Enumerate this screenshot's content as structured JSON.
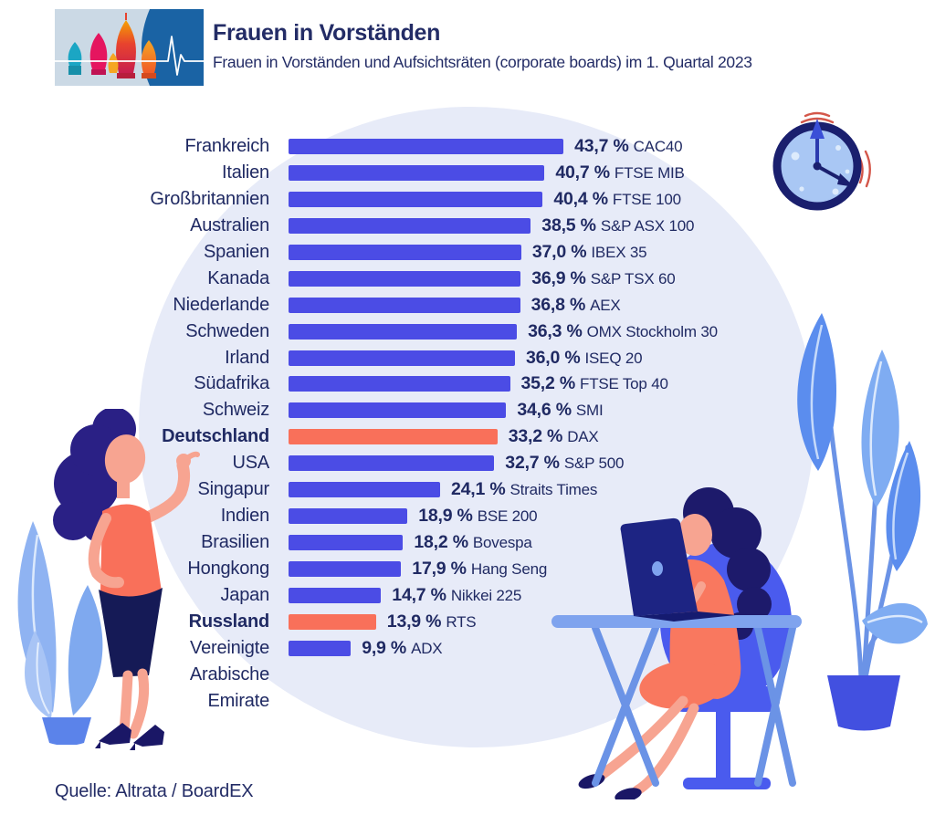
{
  "header": {
    "title": "Frauen in Vorständen",
    "subtitle": "Frauen in Vorständen und Aufsichtsräten (corporate boards) im 1. Quartal 2023",
    "logo_icon": "st-basils-cathedral-pulse-logo"
  },
  "chart_data": {
    "type": "bar",
    "orientation": "horizontal",
    "title": "Frauen in Vorständen",
    "subtitle": "Frauen in Vorständen und Aufsichtsräten (corporate boards) im 1. Quartal 2023",
    "unit": "%",
    "xlim": [
      0,
      45
    ],
    "grid": false,
    "legend": null,
    "rows": [
      {
        "country": "Frankreich",
        "value": 43.7,
        "value_label": "43,7 %",
        "stock_index": "CAC40",
        "highlight": false
      },
      {
        "country": "Italien",
        "value": 40.7,
        "value_label": "40,7 %",
        "stock_index": "FTSE MIB",
        "highlight": false
      },
      {
        "country": "Großbritannien",
        "value": 40.4,
        "value_label": "40,4 %",
        "stock_index": "FTSE 100",
        "highlight": false
      },
      {
        "country": "Australien",
        "value": 38.5,
        "value_label": "38,5 %",
        "stock_index": "S&P ASX 100",
        "highlight": false
      },
      {
        "country": "Spanien",
        "value": 37.0,
        "value_label": "37,0 %",
        "stock_index": "IBEX 35",
        "highlight": false
      },
      {
        "country": "Kanada",
        "value": 36.9,
        "value_label": "36,9 %",
        "stock_index": "S&P TSX 60",
        "highlight": false
      },
      {
        "country": "Niederlande",
        "value": 36.8,
        "value_label": "36,8 %",
        "stock_index": "AEX",
        "highlight": false
      },
      {
        "country": "Schweden",
        "value": 36.3,
        "value_label": "36,3 %",
        "stock_index": "OMX Stockholm 30",
        "highlight": false
      },
      {
        "country": "Irland",
        "value": 36.0,
        "value_label": "36,0 %",
        "stock_index": "ISEQ 20",
        "highlight": false
      },
      {
        "country": "Südafrika",
        "value": 35.2,
        "value_label": "35,2 %",
        "stock_index": "FTSE Top 40",
        "highlight": false
      },
      {
        "country": "Schweiz",
        "value": 34.6,
        "value_label": "34,6 %",
        "stock_index": "SMI",
        "highlight": false
      },
      {
        "country": "Deutschland",
        "value": 33.2,
        "value_label": "33,2 %",
        "stock_index": "DAX",
        "highlight": true
      },
      {
        "country": "USA",
        "value": 32.7,
        "value_label": "32,7 %",
        "stock_index": "S&P 500",
        "highlight": false
      },
      {
        "country": "Singapur",
        "value": 24.1,
        "value_label": "24,1 %",
        "stock_index": "Straits Times",
        "highlight": false
      },
      {
        "country": "Indien",
        "value": 18.9,
        "value_label": "18,9 %",
        "stock_index": "BSE 200",
        "highlight": false
      },
      {
        "country": "Brasilien",
        "value": 18.2,
        "value_label": "18,2 %",
        "stock_index": "Bovespa",
        "highlight": false
      },
      {
        "country": "Hongkong",
        "value": 17.9,
        "value_label": "17,9 %",
        "stock_index": "Hang Seng",
        "highlight": false
      },
      {
        "country": "Japan",
        "value": 14.7,
        "value_label": "14,7 %",
        "stock_index": "Nikkei 225",
        "highlight": false
      },
      {
        "country": "Russland",
        "value": 13.9,
        "value_label": "13,9 %",
        "stock_index": "RTS",
        "highlight": true
      },
      {
        "country": "Vereinigte\nArabische\nEmirate",
        "value": 9.9,
        "value_label": "9,9 %",
        "stock_index": "ADX",
        "highlight": false
      }
    ],
    "colors": {
      "bar": "#4B4CE5",
      "highlight_bar": "#F9705A",
      "text": "#202A63",
      "background_blob": "#E7EBF8"
    }
  },
  "source": {
    "label": "Quelle: Altrata / BoardEX"
  },
  "illustrations": {
    "clock": "alarm-clock-illustration",
    "left_plant": "potted-plant-illustration",
    "left_woman": "standing-presenting-woman-illustration",
    "right_scene": "woman-working-on-laptop-at-desk-illustration",
    "right_plant": "tall-potted-plant-illustration"
  }
}
